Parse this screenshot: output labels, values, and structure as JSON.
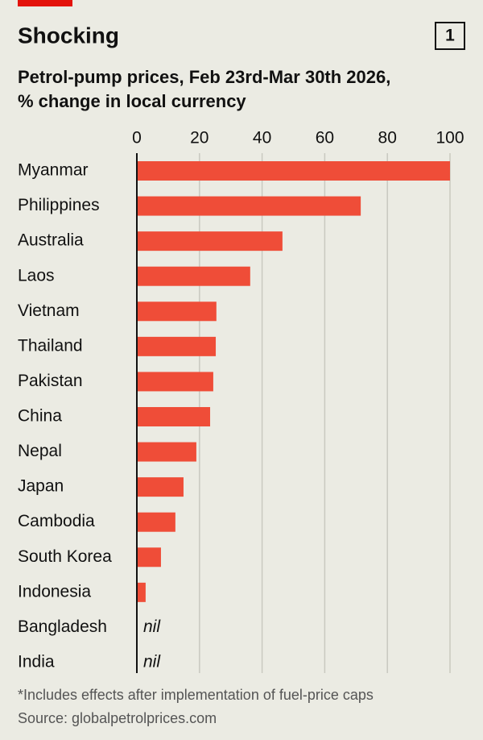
{
  "chart_data": {
    "type": "bar",
    "orientation": "horizontal",
    "title": "Shocking",
    "badge": "1",
    "subtitle": [
      "Petrol-pump prices, Feb 23rd-Mar 30th 2026,",
      "% change in local currency"
    ],
    "categories": [
      "Myanmar",
      "Philippines",
      "Australia",
      "Laos",
      "Vietnam",
      "Thailand",
      "Pakistan",
      "China",
      "Nepal",
      "Japan",
      "Cambodia",
      "South Korea",
      "Indonesia",
      "Bangladesh",
      "India"
    ],
    "values": [
      100,
      71.5,
      46.5,
      36.2,
      25.4,
      25.2,
      24.4,
      23.4,
      19,
      14.9,
      12.3,
      7.7,
      2.8,
      0,
      0
    ],
    "value_labels": [
      null,
      null,
      null,
      null,
      null,
      null,
      null,
      null,
      null,
      null,
      null,
      null,
      null,
      "nil",
      "nil"
    ],
    "color": "#ef4d38",
    "xlim": [
      0,
      100
    ],
    "xticks": [
      0,
      20,
      40,
      60,
      80,
      100
    ],
    "grid": true,
    "footnotes": [
      "*Includes effects after implementation of fuel-price caps",
      "Source: globalpetrolprices.com"
    ]
  }
}
